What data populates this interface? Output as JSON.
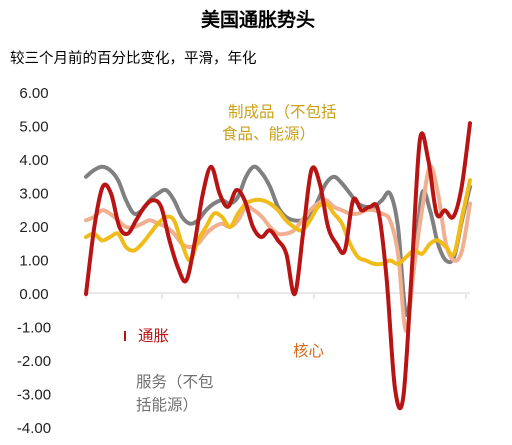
{
  "chart_data": {
    "type": "line",
    "title": "美国通胀势头",
    "subtitle": "较三个月前的百分比变化，平滑，年化",
    "xlabel": "",
    "ylabel": "",
    "ylim": [
      -4,
      6
    ],
    "y_ticks": [
      "6.00",
      "5.00",
      "4.00",
      "3.00",
      "2.00",
      "1.00",
      "0.00",
      "-1.00",
      "-2.00",
      "-3.00",
      "-4.00"
    ],
    "grid": false,
    "annotations": {
      "headline": "通胀",
      "core": "核心",
      "goods": [
        "制成品（不包括",
        "食品、能源）"
      ],
      "services": [
        "服务（不包",
        "括能源）"
      ]
    },
    "series": [
      {
        "key": "services",
        "color": "#808080",
        "values": [
          3.5,
          3.7,
          3.8,
          3.7,
          3.4,
          2.8,
          2.4,
          2.5,
          2.8,
          3.0,
          3.1,
          2.8,
          2.3,
          2.1,
          2.2,
          2.5,
          2.7,
          2.8,
          2.7,
          2.9,
          3.5,
          3.8,
          3.6,
          3.2,
          2.6,
          2.3,
          2.2,
          2.2,
          2.3,
          2.8,
          3.3,
          3.5,
          3.3,
          3.0,
          2.7,
          2.6,
          2.6,
          2.8,
          3.0,
          2.0,
          -0.6,
          0.8,
          3.0,
          2.5,
          1.5,
          1.0,
          1.1,
          2.2,
          3.2
        ]
      },
      {
        "key": "core",
        "color": "#f0b090",
        "values": [
          2.2,
          2.3,
          2.5,
          2.4,
          2.2,
          2.0,
          2.0,
          2.1,
          2.2,
          2.1,
          2.0,
          1.8,
          1.5,
          1.4,
          1.5,
          1.8,
          2.0,
          2.1,
          2.0,
          2.2,
          2.6,
          2.5,
          2.3,
          2.0,
          1.8,
          1.8,
          1.9,
          2.2,
          2.5,
          2.7,
          2.8,
          2.6,
          2.5,
          2.4,
          2.4,
          2.5,
          2.5,
          2.4,
          2.2,
          1.2,
          -1.1,
          0.8,
          2.5,
          3.8,
          3.0,
          1.5,
          1.0,
          1.3,
          2.7
        ]
      },
      {
        "key": "goods",
        "color": "#f0bc1a",
        "values": [
          1.7,
          1.8,
          1.6,
          1.7,
          1.8,
          1.4,
          1.3,
          1.5,
          1.8,
          2.1,
          2.3,
          2.2,
          1.5,
          1.0,
          1.6,
          2.0,
          2.4,
          2.3,
          2.0,
          2.4,
          2.7,
          2.8,
          2.8,
          2.7,
          2.5,
          2.2,
          2.0,
          1.9,
          2.2,
          2.6,
          2.7,
          2.4,
          2.1,
          1.5,
          1.1,
          1.0,
          0.9,
          0.9,
          1.0,
          0.9,
          1.1,
          1.3,
          1.2,
          1.5,
          1.6,
          1.4,
          1.2,
          2.3,
          3.4
        ]
      },
      {
        "key": "headline",
        "color": "#b81414",
        "values": [
          0.0,
          2.0,
          3.2,
          3.0,
          2.0,
          1.8,
          2.2,
          2.6,
          2.8,
          2.6,
          1.6,
          0.8,
          0.4,
          1.5,
          3.0,
          3.8,
          3.0,
          2.6,
          3.1,
          2.8,
          2.0,
          1.7,
          1.9,
          1.6,
          1.2,
          0.0,
          1.8,
          3.7,
          3.3,
          2.0,
          1.5,
          1.3,
          2.8,
          2.5,
          2.6,
          2.5,
          0.5,
          -2.8,
          -3.1,
          0.6,
          4.6,
          4.0,
          2.4,
          2.5,
          2.3,
          3.2,
          5.1
        ]
      }
    ]
  }
}
